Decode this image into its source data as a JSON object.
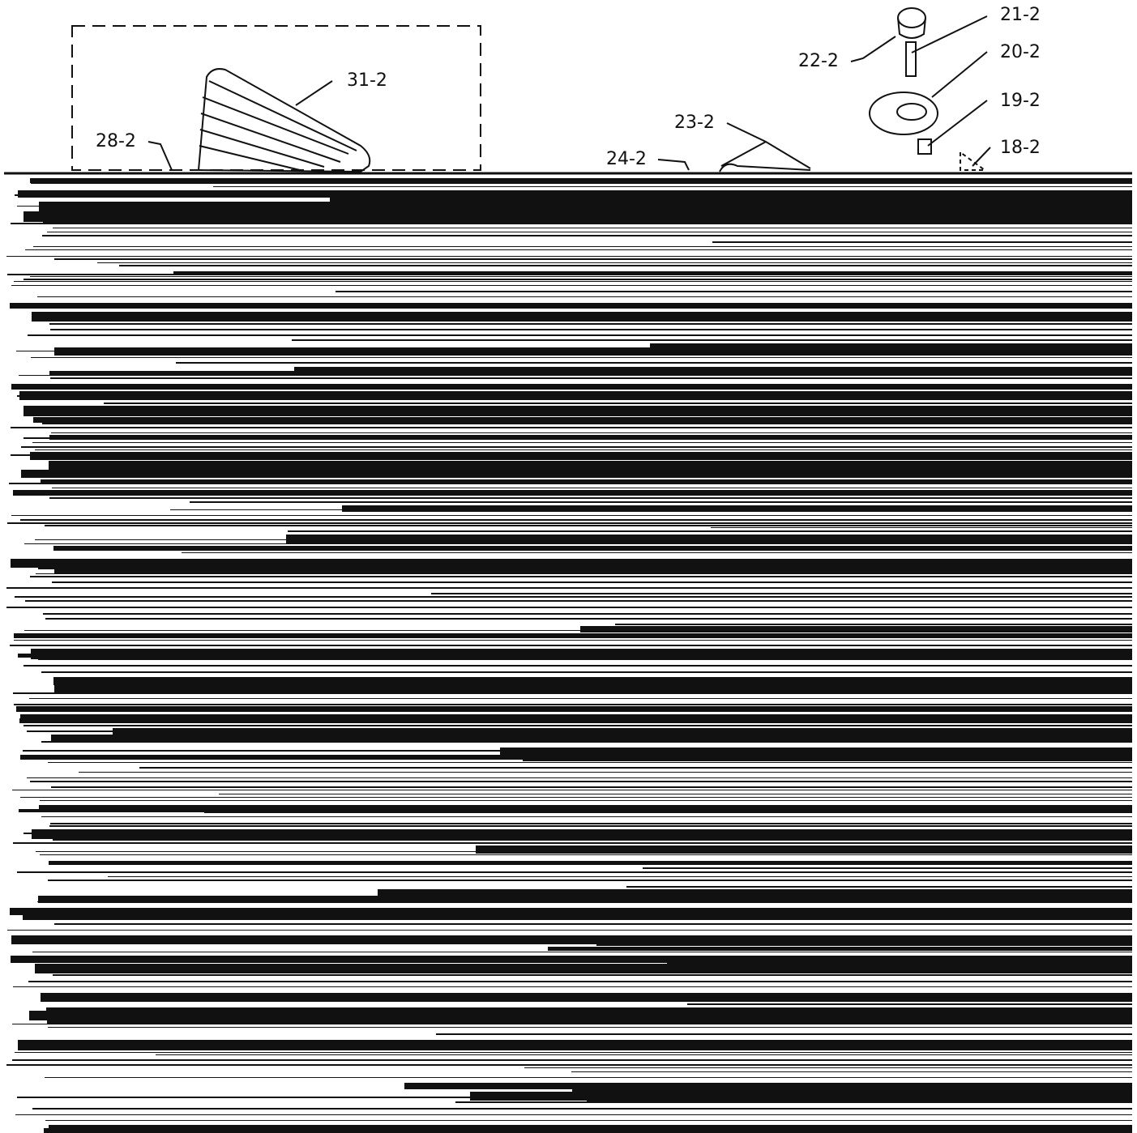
{
  "labels": {
    "l31": "31-2",
    "l28": "28-2",
    "l23": "23-2",
    "l24": "24-2",
    "l22": "22-2",
    "l21": "21-2",
    "l20": "20-2",
    "l19": "19-2",
    "l18": "18-2"
  }
}
